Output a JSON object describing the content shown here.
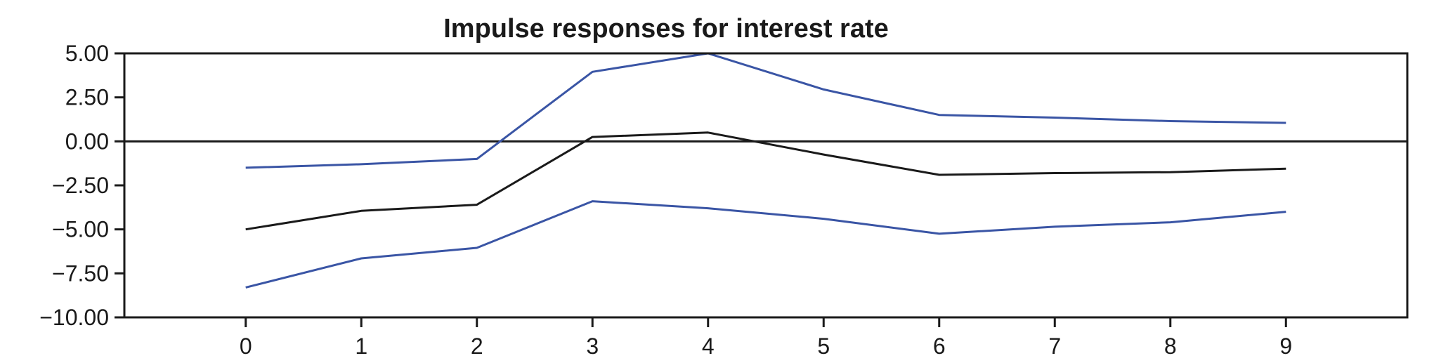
{
  "chart_data": {
    "type": "line",
    "title": "Impulse responses for interest rate",
    "xlabel": "",
    "ylabel": "",
    "x": [
      0,
      1,
      2,
      3,
      4,
      5,
      6,
      7,
      8,
      9
    ],
    "xlim": [
      -1.05,
      10.05
    ],
    "ylim": [
      -10.0,
      5.0
    ],
    "yticks": [
      5.0,
      2.5,
      0.0,
      -2.5,
      -5.0,
      -7.5,
      -10.0
    ],
    "ytick_labels": [
      "5.00",
      "2.50",
      "0.00",
      "−2.50",
      "−5.00",
      "−7.50",
      "−10.00"
    ],
    "xtick_labels": [
      "0",
      "1",
      "2",
      "3",
      "4",
      "5",
      "6",
      "7",
      "8",
      "9"
    ],
    "grid": false,
    "legend": "none",
    "reference_line": 0.0,
    "series": [
      {
        "color": "#3a55a5",
        "values": [
          -1.5,
          -1.3,
          -1.0,
          3.95,
          5.0,
          2.95,
          1.5,
          1.35,
          1.15,
          1.05
        ]
      },
      {
        "color": "#1a1a1a",
        "values": [
          -5.0,
          -3.95,
          -3.6,
          0.25,
          0.5,
          -0.75,
          -1.9,
          -1.8,
          -1.75,
          -1.55
        ]
      },
      {
        "color": "#3a55a5",
        "values": [
          -8.3,
          -6.65,
          -6.05,
          -3.4,
          -3.8,
          -4.4,
          -5.25,
          -4.85,
          -4.6,
          -4.0
        ]
      }
    ]
  }
}
